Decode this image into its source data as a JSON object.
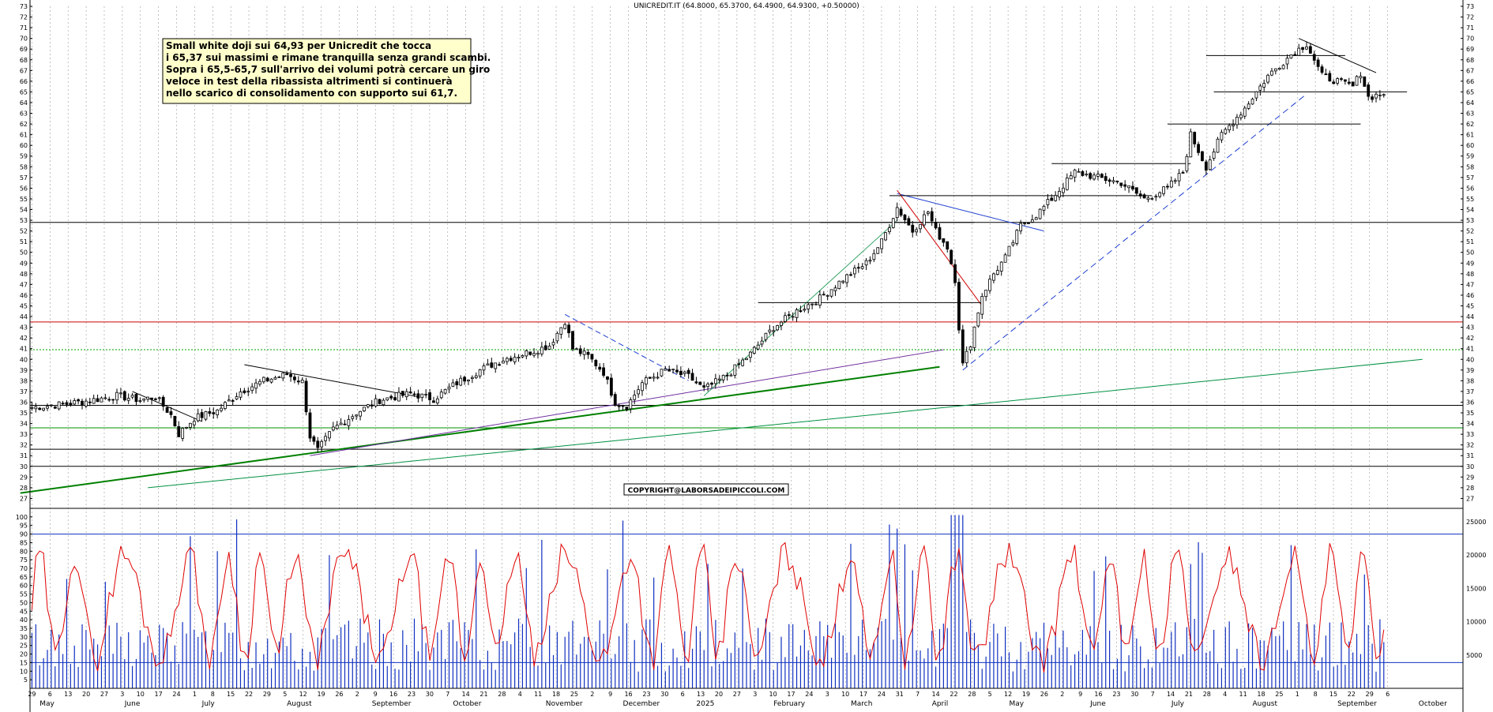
{
  "chart_data": [
    {
      "type": "candlestick",
      "title": "UNICREDIT.IT (64.8000, 65.3700, 64.4900, 64.9300, +0.50000)",
      "annotation_lines": [
        "Small white doji sui 64,93 per Unicredit che tocca",
        "i 65,37 sui massimi e rimane tranquilla senza grandi scambi.",
        "Sopra i 65,5-65,7 sull'arrivo dei volumi potrà cercare un giro",
        "veloce in test della ribassista altrimenti si continuerà",
        "nello scarico di consolidamento con supporto sui 61,7."
      ],
      "copyright": "COPYRIGHT@LABORSADEIPICCOLI.COM",
      "ylim": [
        26,
        73
      ],
      "yticks": [
        27,
        28,
        29,
        30,
        31,
        32,
        33,
        34,
        35,
        36,
        37,
        38,
        39,
        40,
        41,
        42,
        43,
        44,
        45,
        46,
        47,
        48,
        49,
        50,
        51,
        52,
        53,
        54,
        55,
        56,
        57,
        58,
        59,
        60,
        61,
        62,
        63,
        64,
        65,
        66,
        67,
        68,
        69,
        70,
        71,
        72,
        73
      ],
      "price_anchors": [
        [
          0,
          35.5
        ],
        [
          8,
          35.8
        ],
        [
          14,
          36.1
        ],
        [
          22,
          36.6
        ],
        [
          28,
          36.2
        ],
        [
          32,
          36.5
        ],
        [
          36,
          34.8
        ],
        [
          38,
          33.0
        ],
        [
          42,
          34.5
        ],
        [
          48,
          35.2
        ],
        [
          54,
          37.0
        ],
        [
          60,
          38.0
        ],
        [
          66,
          38.6
        ],
        [
          70,
          37.9
        ],
        [
          72,
          32.8
        ],
        [
          74,
          31.5
        ],
        [
          78,
          33.5
        ],
        [
          84,
          35.0
        ],
        [
          90,
          36.2
        ],
        [
          98,
          36.8
        ],
        [
          104,
          36.3
        ],
        [
          110,
          37.8
        ],
        [
          116,
          39.0
        ],
        [
          122,
          40.0
        ],
        [
          130,
          40.8
        ],
        [
          134,
          41.3
        ],
        [
          138,
          43.6
        ],
        [
          140,
          41.0
        ],
        [
          144,
          40.3
        ],
        [
          148,
          38.8
        ],
        [
          151,
          36.0
        ],
        [
          154,
          35.6
        ],
        [
          158,
          37.8
        ],
        [
          164,
          39.0
        ],
        [
          170,
          38.4
        ],
        [
          174,
          37.2
        ],
        [
          180,
          38.5
        ],
        [
          186,
          40.5
        ],
        [
          192,
          43.0
        ],
        [
          198,
          44.5
        ],
        [
          204,
          45.7
        ],
        [
          210,
          47.5
        ],
        [
          216,
          49.0
        ],
        [
          220,
          51.0
        ],
        [
          224,
          54.2
        ],
        [
          228,
          52.0
        ],
        [
          232,
          53.8
        ],
        [
          234,
          52.0
        ],
        [
          237,
          50.5
        ],
        [
          239,
          47.5
        ],
        [
          240,
          43.0
        ],
        [
          241,
          39.5
        ],
        [
          243,
          41.5
        ],
        [
          246,
          46.0
        ],
        [
          249,
          48.0
        ],
        [
          252,
          49.5
        ],
        [
          256,
          52.5
        ],
        [
          260,
          53.5
        ],
        [
          264,
          55.0
        ],
        [
          270,
          57.5
        ],
        [
          276,
          57.0
        ],
        [
          282,
          56.5
        ],
        [
          288,
          55.0
        ],
        [
          294,
          56.0
        ],
        [
          298,
          57.5
        ],
        [
          300,
          61.0
        ],
        [
          304,
          58.0
        ],
        [
          308,
          61.0
        ],
        [
          314,
          63.5
        ],
        [
          320,
          66.5
        ],
        [
          326,
          68.5
        ],
        [
          330,
          69.5
        ],
        [
          334,
          66.5
        ],
        [
          338,
          66.0
        ],
        [
          342,
          65.5
        ],
        [
          344,
          66.8
        ],
        [
          346,
          64.5
        ],
        [
          350,
          64.9
        ]
      ],
      "n_bars": 351,
      "volume_scale": [
        5000,
        10000,
        15000,
        20000,
        25000
      ],
      "oscillator_scale": [
        5,
        10,
        15,
        20,
        25,
        30,
        35,
        40,
        45,
        50,
        55,
        60,
        65,
        70,
        75,
        80,
        85,
        90,
        95,
        100
      ],
      "oscillator_levels": [
        15,
        90
      ],
      "horizontal_levels": [
        {
          "value": 43.5,
          "color": "#d00000"
        },
        {
          "value": 40.9,
          "color": "#00a000",
          "style": "dotted"
        },
        {
          "value": 35.7,
          "color": "#000000"
        },
        {
          "value": 33.6,
          "color": "#009000"
        },
        {
          "value": 31.6,
          "color": "#000000"
        },
        {
          "value": 30.0,
          "color": "#000000"
        },
        {
          "value": 52.8,
          "color": "#000000"
        }
      ],
      "x_day_labels": [
        "29",
        "6",
        "13",
        "20",
        "27",
        "3",
        "10",
        "17",
        "24",
        "1",
        "8",
        "15",
        "22",
        "29",
        "5",
        "12",
        "19",
        "26",
        "2",
        "9",
        "16",
        "23",
        "30",
        "7",
        "14",
        "21",
        "28",
        "4",
        "11",
        "18",
        "25",
        "2",
        "9",
        "16",
        "23",
        "30",
        "6",
        "13",
        "20",
        "27",
        "3",
        "10",
        "17",
        "24",
        "3",
        "10",
        "17",
        "24",
        "31",
        "7",
        "14",
        "22",
        "28",
        "5",
        "12",
        "19",
        "26",
        "2",
        "9",
        "16",
        "23",
        "30",
        "7",
        "14",
        "21",
        "28",
        "4",
        "11",
        "18",
        "25",
        "1",
        "8",
        "15",
        "22",
        "29",
        "6"
      ],
      "x_month_labels": [
        {
          "label": "May",
          "bar": 2
        },
        {
          "label": "June",
          "bar": 24
        },
        {
          "label": "July",
          "bar": 44
        },
        {
          "label": "August",
          "bar": 66
        },
        {
          "label": "September",
          "bar": 88
        },
        {
          "label": "October",
          "bar": 109
        },
        {
          "label": "November",
          "bar": 133
        },
        {
          "label": "December",
          "bar": 153
        },
        {
          "label": "2025",
          "bar": 172
        },
        {
          "label": "February",
          "bar": 192
        },
        {
          "label": "March",
          "bar": 212
        },
        {
          "label": "April",
          "bar": 233
        },
        {
          "label": "May",
          "bar": 253
        },
        {
          "label": "June",
          "bar": 274
        },
        {
          "label": "July",
          "bar": 295
        },
        {
          "label": "August",
          "bar": 316
        },
        {
          "label": "September",
          "bar": 338
        },
        {
          "label": "October",
          "bar": 359
        }
      ]
    }
  ]
}
